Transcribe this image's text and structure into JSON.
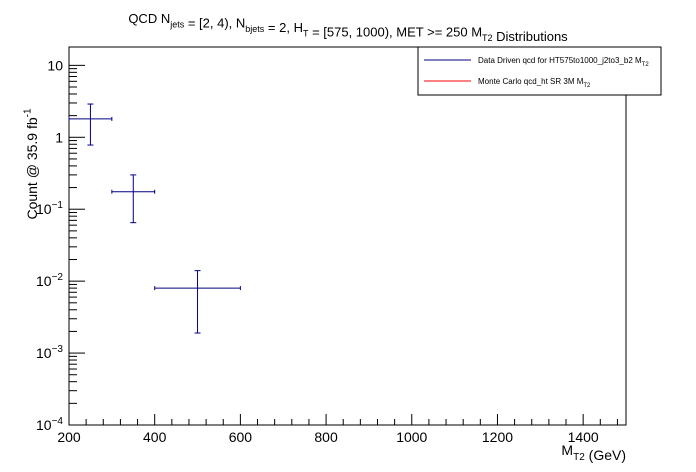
{
  "chart_data": {
    "type": "scatter",
    "title": {
      "parts": [
        {
          "t": "QCD N"
        },
        {
          "t": "jets",
          "sub": true
        },
        {
          "t": " = [2, 4), N"
        },
        {
          "t": "bjets",
          "sub": true
        },
        {
          "t": " = 2, H"
        },
        {
          "t": "T",
          "sub": true
        },
        {
          "t": " = [575, 1000), MET >= 250 M"
        },
        {
          "t": "T2",
          "sub": true
        },
        {
          "t": " Distributions"
        }
      ]
    },
    "xlabel": {
      "parts": [
        {
          "t": "M"
        },
        {
          "t": "T2",
          "sub": true
        },
        {
          "t": " (GeV)"
        }
      ]
    },
    "ylabel": {
      "parts": [
        {
          "t": "Count @ 35.9 fb"
        },
        {
          "t": "-1",
          "sup": true
        }
      ]
    },
    "xlim": [
      200,
      1500
    ],
    "ylim": [
      0.0001,
      18
    ],
    "y_log": true,
    "grid": false,
    "x_ticks": [
      200,
      400,
      600,
      800,
      1000,
      1200,
      1400
    ],
    "x_tick_labels": [
      "200",
      "400",
      "600",
      "800",
      "1000",
      "1200",
      "1400"
    ],
    "y_ticks": [
      {
        "value": 10,
        "base": "10",
        "exp": ""
      },
      {
        "value": 1,
        "base": "1",
        "exp": ""
      },
      {
        "value": 0.1,
        "base": "10",
        "exp": "−1"
      },
      {
        "value": 0.01,
        "base": "10",
        "exp": "−2"
      },
      {
        "value": 0.001,
        "base": "10",
        "exp": "−3"
      },
      {
        "value": 0.0001,
        "base": "10",
        "exp": "−4"
      }
    ],
    "legend_position": "top-right",
    "series": [
      {
        "name": {
          "parts": [
            {
              "t": "Data Driven qcd for HT575to1000_j2to3_b2 M"
            },
            {
              "t": "T2",
              "sub": true
            }
          ]
        },
        "color": "#000080",
        "points": [
          {
            "x": 250,
            "xlo": 200,
            "xhi": 300,
            "y": 1.8,
            "ylo": 0.78,
            "yhi": 2.9
          },
          {
            "x": 350,
            "xlo": 300,
            "xhi": 400,
            "y": 0.175,
            "ylo": 0.065,
            "yhi": 0.3
          },
          {
            "x": 500,
            "xlo": 400,
            "xhi": 600,
            "y": 0.008,
            "ylo": 0.0019,
            "yhi": 0.014
          }
        ]
      },
      {
        "name": {
          "parts": [
            {
              "t": "Monte Carlo qcd_ht SR 3M M"
            },
            {
              "t": "T2",
              "sub": true
            }
          ]
        },
        "color": "#ff0000",
        "points": []
      }
    ]
  }
}
